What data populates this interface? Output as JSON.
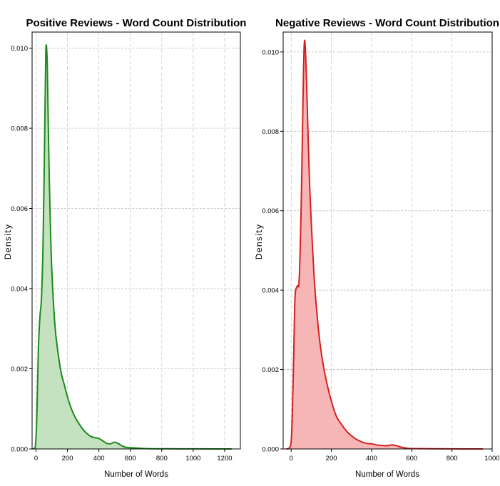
{
  "chart_data": [
    {
      "type": "area",
      "title": "Positive Reviews - Word Count Distribution",
      "xlabel": "Number of Words",
      "ylabel": "Density",
      "xlim": [
        -25,
        1300
      ],
      "ylim": [
        0,
        0.0104
      ],
      "xticks": [
        0,
        200,
        400,
        600,
        800,
        1000,
        1200
      ],
      "yticks": [
        0.0,
        0.002,
        0.004,
        0.006,
        0.008,
        0.01
      ],
      "xtick_labels": [
        "0",
        "200",
        "400",
        "600",
        "800",
        "1000",
        "1200"
      ],
      "ytick_labels": [
        "0.000",
        "0.002",
        "0.004",
        "0.006",
        "0.008",
        "0.010"
      ],
      "grid": true,
      "line_color": "#1a8a1a",
      "fill_color": "#c4e2c0",
      "series": [
        {
          "name": "Positive",
          "x": [
            -20,
            -5,
            5,
            15,
            25,
            35,
            45,
            55,
            62,
            70,
            75,
            80,
            90,
            100,
            120,
            140,
            160,
            180,
            200,
            225,
            250,
            275,
            300,
            325,
            350,
            375,
            400,
            425,
            450,
            475,
            500,
            525,
            550,
            575,
            600,
            650,
            700,
            800,
            900,
            1000,
            1100,
            1245
          ],
          "y": [
            0,
            4e-05,
            0.0008,
            0.0025,
            0.0033,
            0.0038,
            0.0052,
            0.0078,
            0.0099,
            0.0098,
            0.0088,
            0.0076,
            0.0058,
            0.0045,
            0.0031,
            0.0024,
            0.0019,
            0.0016,
            0.0013,
            0.001,
            0.00078,
            0.00062,
            0.00048,
            0.00038,
            0.00031,
            0.00028,
            0.00026,
            0.0002,
            0.00014,
            0.00013,
            0.00017,
            0.00013,
            7e-05,
            4e-05,
            3e-05,
            2e-05,
            1e-05,
            5e-06,
            3e-06,
            2e-06,
            1e-06,
            0
          ]
        }
      ]
    },
    {
      "type": "area",
      "title": "Negative Reviews - Word Count Distribution",
      "xlabel": "Number of Words",
      "ylabel": "Density",
      "xlim": [
        -40,
        1000
      ],
      "ylim": [
        0,
        0.0105
      ],
      "xticks": [
        0,
        200,
        400,
        600,
        800,
        1000
      ],
      "yticks": [
        0.0,
        0.002,
        0.004,
        0.006,
        0.008,
        0.01
      ],
      "xtick_labels": [
        "0",
        "200",
        "400",
        "600",
        "800",
        "1000"
      ],
      "ytick_labels": [
        "0.000",
        "0.002",
        "0.004",
        "0.006",
        "0.008",
        "0.010"
      ],
      "grid": true,
      "line_color": "#d42020",
      "fill_color": "#f7b6b6",
      "series": [
        {
          "name": "Negative",
          "x": [
            -25,
            -10,
            0,
            5,
            10,
            15,
            20,
            30,
            40,
            50,
            58,
            65,
            72,
            80,
            90,
            100,
            110,
            120,
            140,
            160,
            180,
            200,
            225,
            250,
            275,
            300,
            325,
            350,
            375,
            400,
            425,
            450,
            475,
            500,
            525,
            550,
            575,
            600,
            700,
            800,
            955
          ],
          "y": [
            0,
            2e-05,
            0.0002,
            0.0008,
            0.0018,
            0.003,
            0.0039,
            0.0041,
            0.0043,
            0.0062,
            0.0086,
            0.0102,
            0.0099,
            0.0086,
            0.0069,
            0.0057,
            0.0047,
            0.0039,
            0.0028,
            0.0021,
            0.0016,
            0.0012,
            0.00082,
            0.00062,
            0.00045,
            0.00033,
            0.00024,
            0.00018,
            0.00014,
            0.00013,
            0.0001,
            9e-05,
            8e-05,
            0.0001,
            8e-05,
            4e-05,
            2e-05,
            1e-05,
            5e-06,
            2e-06,
            0
          ]
        }
      ]
    }
  ]
}
